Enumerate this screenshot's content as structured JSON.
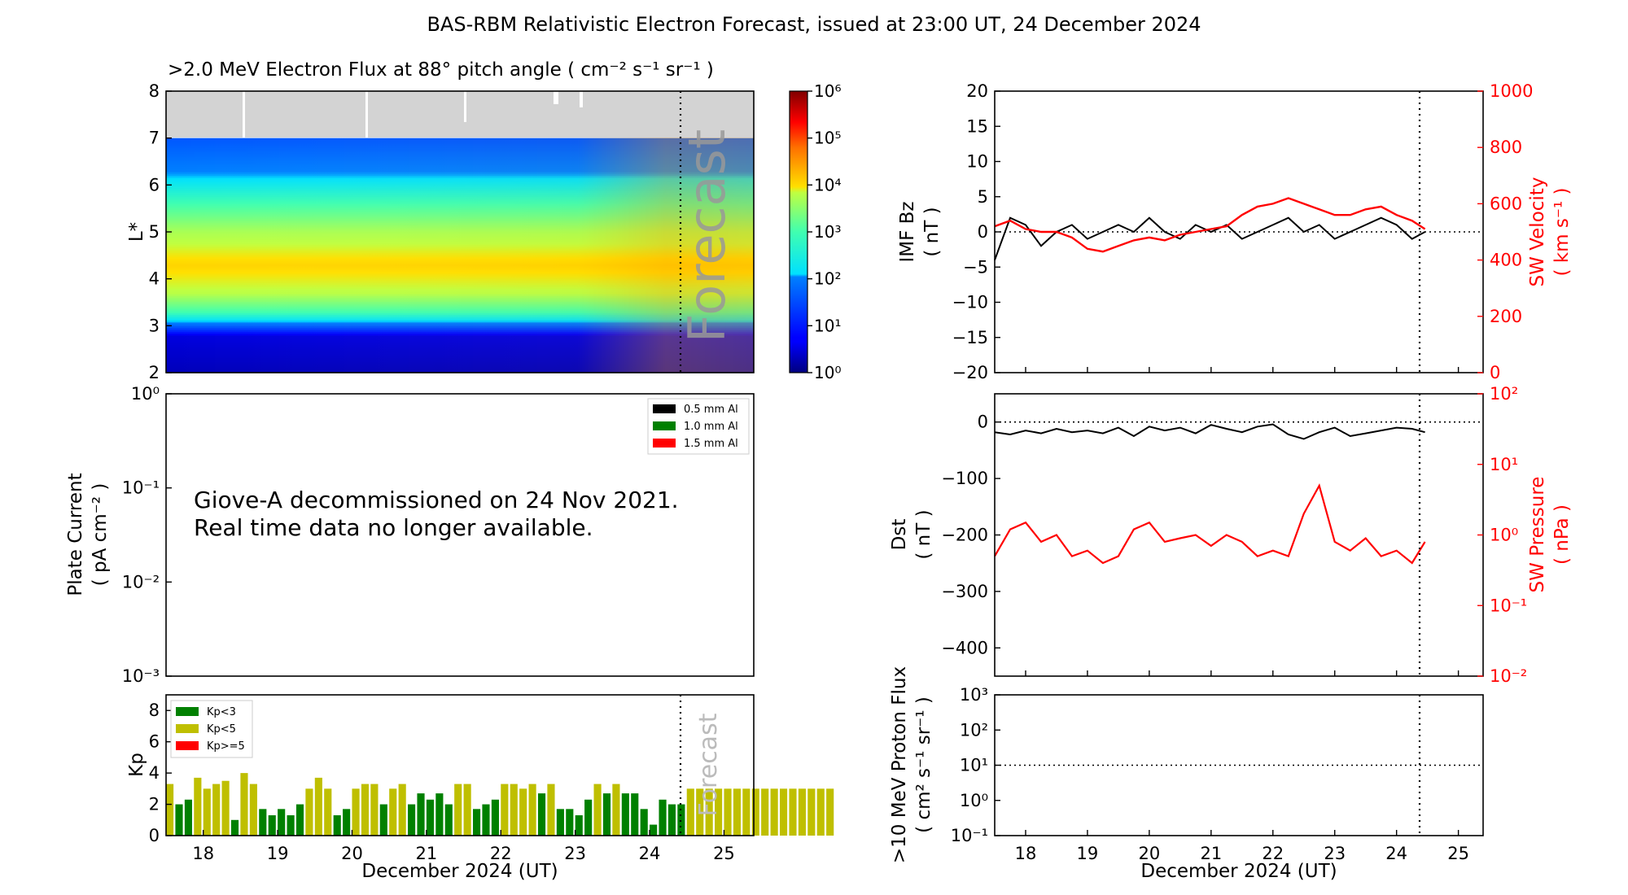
{
  "figure_title": "BAS-RBM Relativistic Electron Forecast, issued at 23:00 UT, 24 December 2024",
  "colors": {
    "kp_low": "#008000",
    "kp_mid": "#bfbf00",
    "kp_high": "#ff0000",
    "sw": "#ff0000",
    "unavailable": "#d3d3d3"
  },
  "chart_data": [
    {
      "id": "electron_flux",
      "type": "heatmap",
      "title": ">2.0 MeV Electron Flux at 88° pitch angle ( cm⁻² s⁻¹ sr⁻¹ )",
      "ylabel": "L*",
      "xlim": [
        17.5,
        25.4
      ],
      "ylim": [
        2,
        8
      ],
      "yticks": [
        "2",
        "3",
        "4",
        "5",
        "6",
        "7",
        "8"
      ],
      "forecast_start": 24.46,
      "forecast_label": "Forecast",
      "no_data_above_L": 7,
      "colorbar": {
        "scale": "log",
        "range": [
          1,
          1000000
        ],
        "ticks": [
          "10⁰",
          "10¹",
          "10²",
          "10³",
          "10⁴",
          "10⁵",
          "10⁶"
        ]
      },
      "profile_logflux_by_L": [
        {
          "L": 2.0,
          "log_flux": 0.3
        },
        {
          "L": 2.8,
          "log_flux": 0.5
        },
        {
          "L": 3.0,
          "log_flux": 1.7
        },
        {
          "L": 3.3,
          "log_flux": 3.0
        },
        {
          "L": 3.7,
          "log_flux": 3.8
        },
        {
          "L": 4.3,
          "log_flux": 4.1
        },
        {
          "L": 5.0,
          "log_flux": 3.7
        },
        {
          "L": 5.6,
          "log_flux": 3.0
        },
        {
          "L": 6.2,
          "log_flux": 2.1
        },
        {
          "L": 7.0,
          "log_flux": 1.6
        }
      ]
    },
    {
      "id": "plate_current",
      "type": "line",
      "ylabel": "Plate Current",
      "yunits": "( pA cm⁻² )",
      "yscale": "log",
      "ylim": [
        0.001,
        1
      ],
      "yticks": [
        "10⁻³",
        "10⁻²",
        "10⁻¹",
        "10⁰"
      ],
      "series": [
        {
          "name": "0.5 mm Al",
          "color": "#000000"
        },
        {
          "name": "1.0 mm Al",
          "color": "#008000"
        },
        {
          "name": "1.5 mm Al",
          "color": "#ff0000"
        }
      ],
      "legend_position": "top-right",
      "annotation_lines": [
        "Giove-A decommissioned on 24 Nov 2021.",
        "Real time data no longer available."
      ]
    },
    {
      "id": "kp",
      "type": "bar",
      "ylabel": "Kp",
      "xlabel": "December 2024 (UT)",
      "xlim": [
        17.5,
        25.4
      ],
      "ylim": [
        0,
        9
      ],
      "yticks": [
        "0",
        "2",
        "4",
        "6",
        "8"
      ],
      "xtick_values": [
        18,
        19,
        20,
        21,
        22,
        23,
        24,
        25
      ],
      "xticks": [
        "18",
        "19",
        "20",
        "21",
        "22",
        "23",
        "24",
        "25"
      ],
      "bar_width_days": 0.1,
      "forecast_start": 24.46,
      "forecast_label": "Forecast",
      "legend": [
        {
          "name": "Kp<3",
          "color": "#008000"
        },
        {
          "name": "Kp<5",
          "color": "#bfbf00"
        },
        {
          "name": "Kp>=5",
          "color": "#ff0000"
        }
      ],
      "legend_position": "top-left",
      "t_start": 17.5,
      "interval_days": 0.125,
      "values": [
        3.3,
        2.0,
        2.3,
        3.7,
        3.0,
        3.3,
        3.5,
        1.0,
        4.0,
        3.3,
        1.7,
        1.3,
        1.7,
        1.3,
        2.0,
        3.0,
        3.7,
        3.0,
        1.3,
        1.7,
        3.0,
        3.3,
        3.3,
        2.0,
        3.0,
        3.3,
        2.0,
        2.7,
        2.3,
        2.7,
        2.0,
        3.3,
        3.3,
        1.7,
        2.0,
        2.3,
        3.3,
        3.3,
        3.0,
        3.3,
        2.7,
        3.3,
        1.7,
        1.7,
        1.3,
        2.3,
        3.3,
        2.7,
        3.3,
        2.7,
        2.7,
        1.7,
        0.7,
        2.3,
        2.0,
        2.0,
        3.0,
        3.0,
        3.0,
        3.0,
        3.0,
        3.0,
        3.0,
        3.0
      ],
      "forecast_values": [
        3.0,
        3.0,
        3.0,
        3.0,
        3.0,
        3.0,
        3.0,
        3.0
      ]
    },
    {
      "id": "imf_bz_sw_velocity",
      "type": "line",
      "ylabel": "IMF Bz",
      "yunits": "( nT )",
      "ylim": [
        -20,
        20
      ],
      "yticks": [
        "−20",
        "−15",
        "−10",
        "−5",
        "0",
        "5",
        "10",
        "15",
        "20"
      ],
      "y2label": "SW Velocity",
      "y2units": "( km s⁻¹ )",
      "y2lim": [
        0,
        1000
      ],
      "y2ticks": [
        "0",
        "200",
        "400",
        "600",
        "800",
        "1000"
      ],
      "xlim": [
        17.5,
        25.4
      ],
      "now": 24.46,
      "series": [
        {
          "axis": "left",
          "color": "#000000",
          "x": [
            17.5,
            17.75,
            18.0,
            18.25,
            18.5,
            18.75,
            19.0,
            19.25,
            19.5,
            19.75,
            20.0,
            20.25,
            20.5,
            20.75,
            21.0,
            21.25,
            21.5,
            21.75,
            22.0,
            22.25,
            22.5,
            22.75,
            23.0,
            23.25,
            23.5,
            23.75,
            24.0,
            24.25,
            24.46
          ],
          "y": [
            -4,
            2,
            1,
            -2,
            0,
            1,
            -1,
            0,
            1,
            0,
            2,
            0,
            -1,
            1,
            0,
            1,
            -1,
            0,
            1,
            2,
            0,
            1,
            -1,
            0,
            1,
            2,
            1,
            -1,
            0
          ]
        },
        {
          "axis": "right",
          "color": "#ff0000",
          "x": [
            17.5,
            17.75,
            18.0,
            18.25,
            18.5,
            18.75,
            19.0,
            19.25,
            19.5,
            19.75,
            20.0,
            20.25,
            20.5,
            20.75,
            21.0,
            21.25,
            21.5,
            21.75,
            22.0,
            22.25,
            22.5,
            22.75,
            23.0,
            23.25,
            23.5,
            23.75,
            24.0,
            24.25,
            24.46
          ],
          "y": [
            520,
            540,
            510,
            500,
            500,
            480,
            440,
            430,
            450,
            470,
            480,
            470,
            490,
            500,
            510,
            520,
            560,
            590,
            600,
            620,
            600,
            580,
            560,
            560,
            580,
            590,
            560,
            540,
            510
          ]
        }
      ]
    },
    {
      "id": "dst_sw_pressure",
      "type": "line",
      "ylabel": "Dst",
      "yunits": "( nT )",
      "ylim": [
        -450,
        50
      ],
      "yticks": [
        "−400",
        "−300",
        "−200",
        "−100",
        "0"
      ],
      "y2label": "SW Pressure",
      "y2units": "( nPa )",
      "y2scale": "log",
      "y2lim": [
        0.01,
        100
      ],
      "y2ticks": [
        "10⁻²",
        "10⁻¹",
        "10⁰",
        "10¹",
        "10²"
      ],
      "xlim": [
        17.5,
        25.4
      ],
      "now": 24.46,
      "series": [
        {
          "axis": "left",
          "color": "#000000",
          "x": [
            17.5,
            17.75,
            18.0,
            18.25,
            18.5,
            18.75,
            19.0,
            19.25,
            19.5,
            19.75,
            20.0,
            20.25,
            20.5,
            20.75,
            21.0,
            21.25,
            21.5,
            21.75,
            22.0,
            22.25,
            22.5,
            22.75,
            23.0,
            23.25,
            23.5,
            23.75,
            24.0,
            24.25,
            24.46
          ],
          "y": [
            -18,
            -22,
            -15,
            -20,
            -12,
            -18,
            -15,
            -20,
            -10,
            -25,
            -8,
            -15,
            -10,
            -20,
            -5,
            -12,
            -18,
            -8,
            -4,
            -22,
            -30,
            -18,
            -10,
            -25,
            -20,
            -15,
            -10,
            -12,
            -18
          ]
        },
        {
          "axis": "right",
          "color": "#ff0000",
          "x": [
            17.5,
            17.75,
            18.0,
            18.25,
            18.5,
            18.75,
            19.0,
            19.25,
            19.5,
            19.75,
            20.0,
            20.25,
            20.5,
            20.75,
            21.0,
            21.25,
            21.5,
            21.75,
            22.0,
            22.25,
            22.5,
            22.75,
            23.0,
            23.25,
            23.5,
            23.75,
            24.0,
            24.25,
            24.46
          ],
          "y": [
            0.5,
            1.2,
            1.5,
            0.8,
            1.0,
            0.5,
            0.6,
            0.4,
            0.5,
            1.2,
            1.5,
            0.8,
            0.9,
            1.0,
            0.7,
            1.0,
            0.8,
            0.5,
            0.6,
            0.5,
            2.0,
            5.0,
            0.8,
            0.6,
            0.9,
            0.5,
            0.6,
            0.4,
            0.8
          ]
        }
      ]
    },
    {
      "id": "proton_flux",
      "type": "line",
      "ylabel": ">10 MeV Proton Flux",
      "yunits": "( cm² s⁻¹ sr⁻¹ )",
      "yscale": "log",
      "ylim": [
        0.1,
        1000
      ],
      "yticks": [
        "10⁻¹",
        "10⁰",
        "10¹",
        "10²",
        "10³"
      ],
      "threshold": 10,
      "xlabel": "December 2024 (UT)",
      "xlim": [
        17.5,
        25.4
      ],
      "xtick_values": [
        18,
        19,
        20,
        21,
        22,
        23,
        24,
        25
      ],
      "xticks": [
        "18",
        "19",
        "20",
        "21",
        "22",
        "23",
        "24",
        "25"
      ],
      "now": 24.46,
      "series": []
    }
  ]
}
